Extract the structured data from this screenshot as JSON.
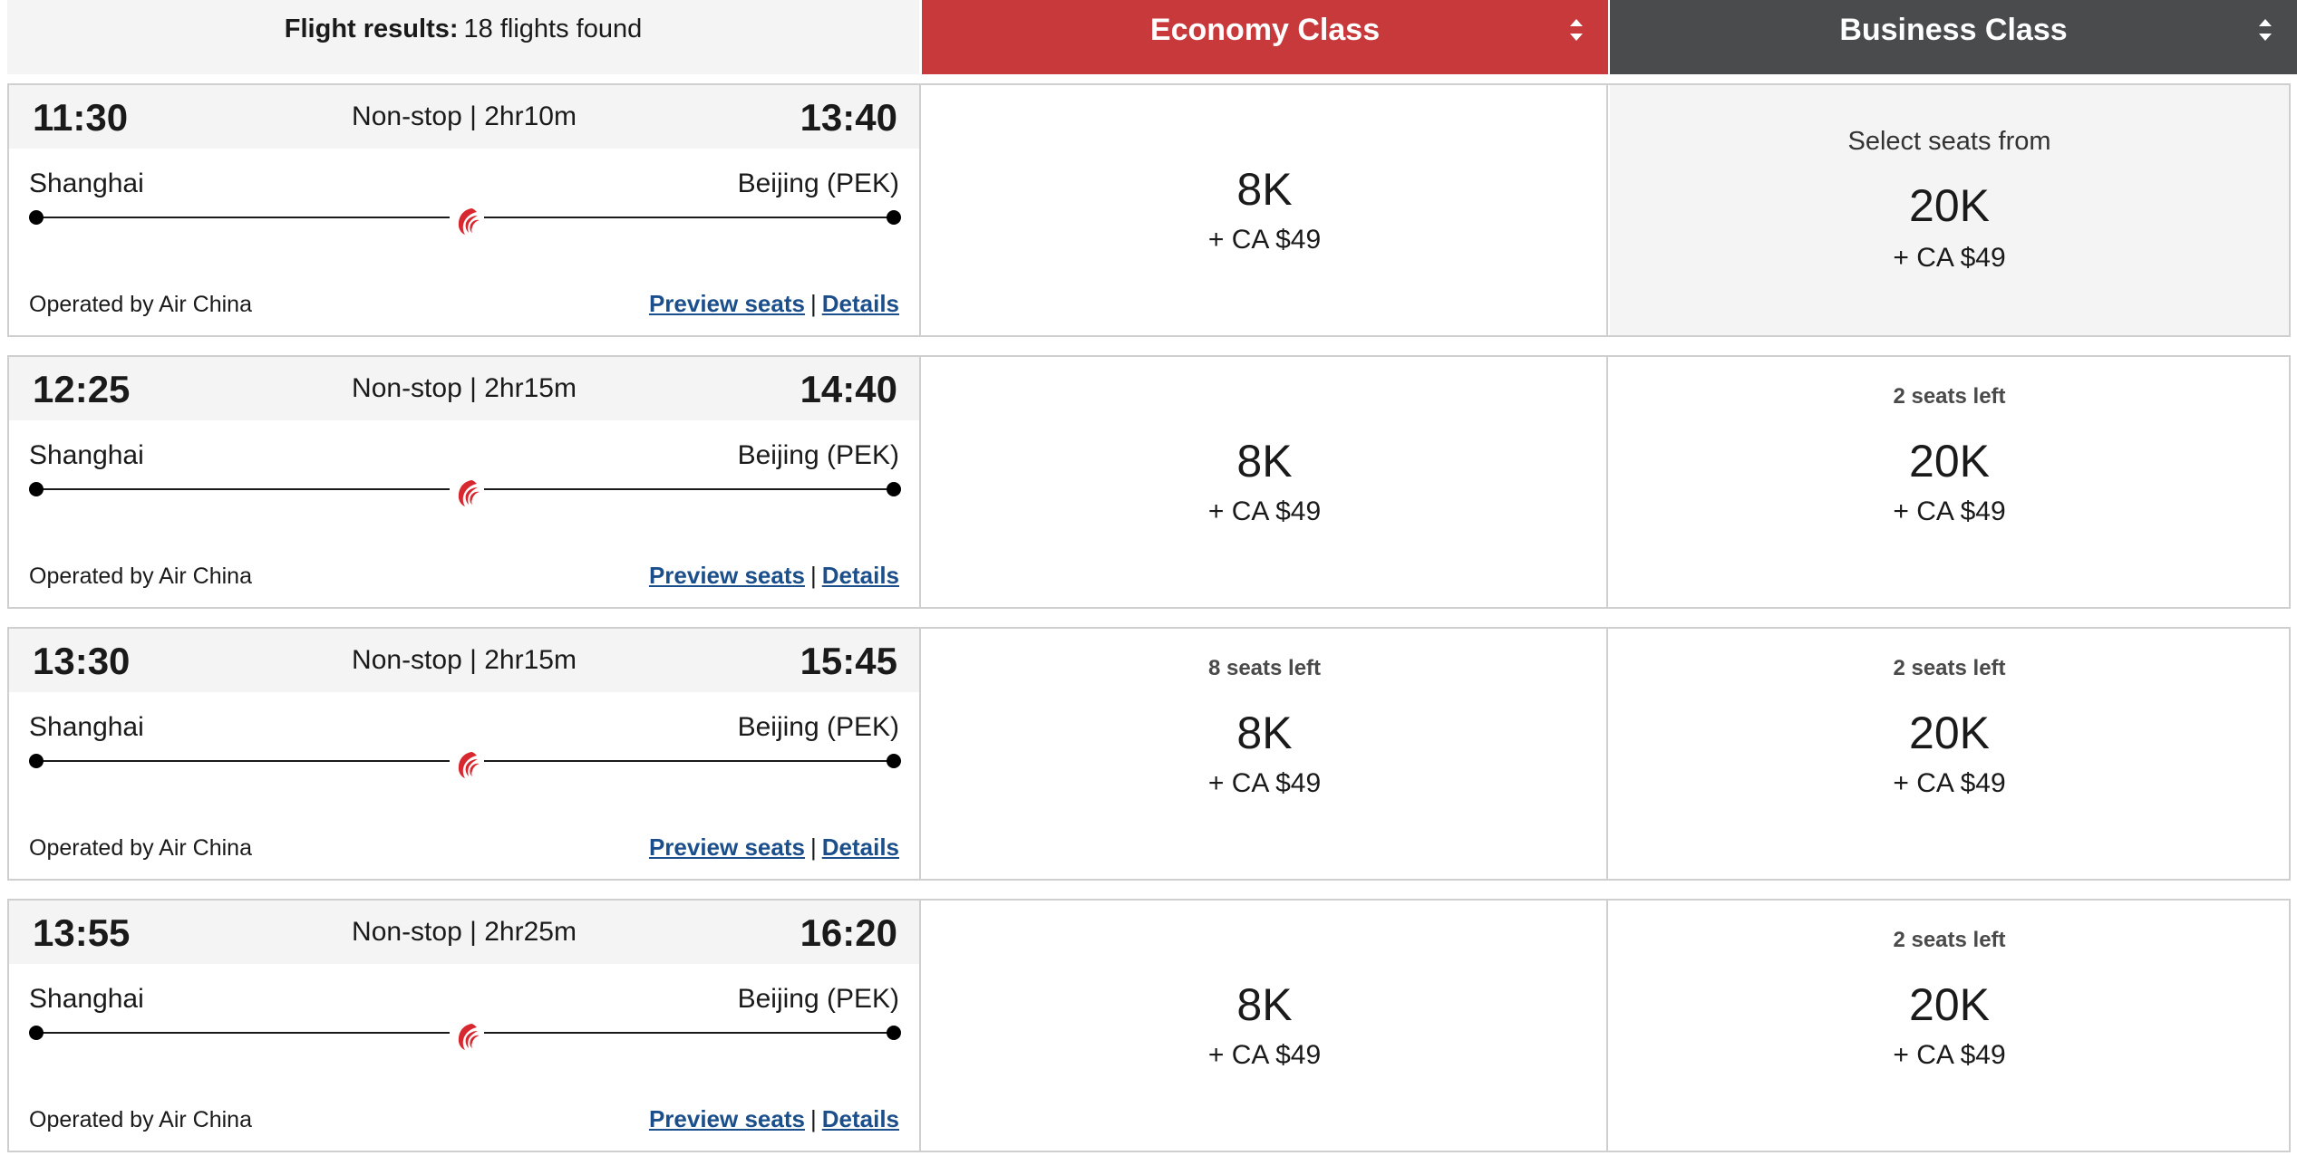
{
  "header": {
    "results_label": "Flight results:",
    "results_count": "18 flights found",
    "economy_label": "Economy Class",
    "business_label": "Business Class"
  },
  "colors": {
    "economy_header": "#c8393b",
    "business_header": "#4a4b4d",
    "link": "#1b4f8c",
    "airline_logo": "#d8282f"
  },
  "flights": [
    {
      "departure": "11:30",
      "arrival": "13:40",
      "duration": "Non-stop | 2hr10m",
      "origin": "Shanghai",
      "destination": "Beijing (PEK)",
      "operated_by": "Operated by Air China",
      "preview_label": "Preview seats",
      "separator": "|",
      "details_label": "Details",
      "airline_icon": "air-china-phoenix-icon",
      "economy": {
        "availability": "",
        "points": "8K",
        "tax": "+ CA $49"
      },
      "business": {
        "prefix": "Select seats from",
        "availability": "",
        "points": "20K",
        "tax": "+ CA $49"
      }
    },
    {
      "departure": "12:25",
      "arrival": "14:40",
      "duration": "Non-stop | 2hr15m",
      "origin": "Shanghai",
      "destination": "Beijing (PEK)",
      "operated_by": "Operated by Air China",
      "preview_label": "Preview seats",
      "separator": "|",
      "details_label": "Details",
      "airline_icon": "air-china-phoenix-icon",
      "economy": {
        "availability": "",
        "points": "8K",
        "tax": "+ CA $49"
      },
      "business": {
        "prefix": "",
        "availability": "2 seats left",
        "points": "20K",
        "tax": "+ CA $49"
      }
    },
    {
      "departure": "13:30",
      "arrival": "15:45",
      "duration": "Non-stop | 2hr15m",
      "origin": "Shanghai",
      "destination": "Beijing (PEK)",
      "operated_by": "Operated by Air China",
      "preview_label": "Preview seats",
      "separator": "|",
      "details_label": "Details",
      "airline_icon": "air-china-phoenix-icon",
      "economy": {
        "availability": "8 seats left",
        "points": "8K",
        "tax": "+ CA $49"
      },
      "business": {
        "prefix": "",
        "availability": "2 seats left",
        "points": "20K",
        "tax": "+ CA $49"
      }
    },
    {
      "departure": "13:55",
      "arrival": "16:20",
      "duration": "Non-stop | 2hr25m",
      "origin": "Shanghai",
      "destination": "Beijing (PEK)",
      "operated_by": "Operated by Air China",
      "preview_label": "Preview seats",
      "separator": "|",
      "details_label": "Details",
      "airline_icon": "air-china-phoenix-icon",
      "economy": {
        "availability": "",
        "points": "8K",
        "tax": "+ CA $49"
      },
      "business": {
        "prefix": "",
        "availability": "2 seats left",
        "points": "20K",
        "tax": "+ CA $49"
      }
    }
  ]
}
